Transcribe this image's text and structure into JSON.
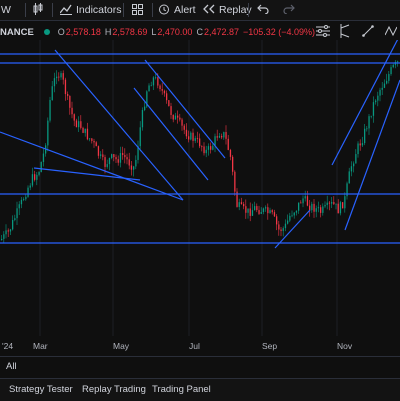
{
  "toolbar": {
    "interval": "W",
    "indicators_label": "Indicators",
    "alert_label": "Alert",
    "replay_label": "Replay"
  },
  "legend": {
    "exchange": "NANCE",
    "o_label": "O",
    "o_value": "2,578.18",
    "h_label": "H",
    "h_value": "2,578.69",
    "l_label": "L",
    "l_value": "2,470.00",
    "c_label": "C",
    "c_value": "2,472.87",
    "change": "−105.32 (−4.09%)",
    "up_color": "#089981",
    "down_color": "#f23645",
    "line_color": "#2962ff"
  },
  "time_axis": {
    "labels": [
      "'24",
      "Mar",
      "May",
      "Jul",
      "Sep",
      "Nov"
    ]
  },
  "range_bar": {
    "all_label": "All"
  },
  "bottom_panels": {
    "strategy_tester": "Strategy Tester",
    "replay_trading": "Replay Trading",
    "trading_panel": "Trading Panel"
  }
}
